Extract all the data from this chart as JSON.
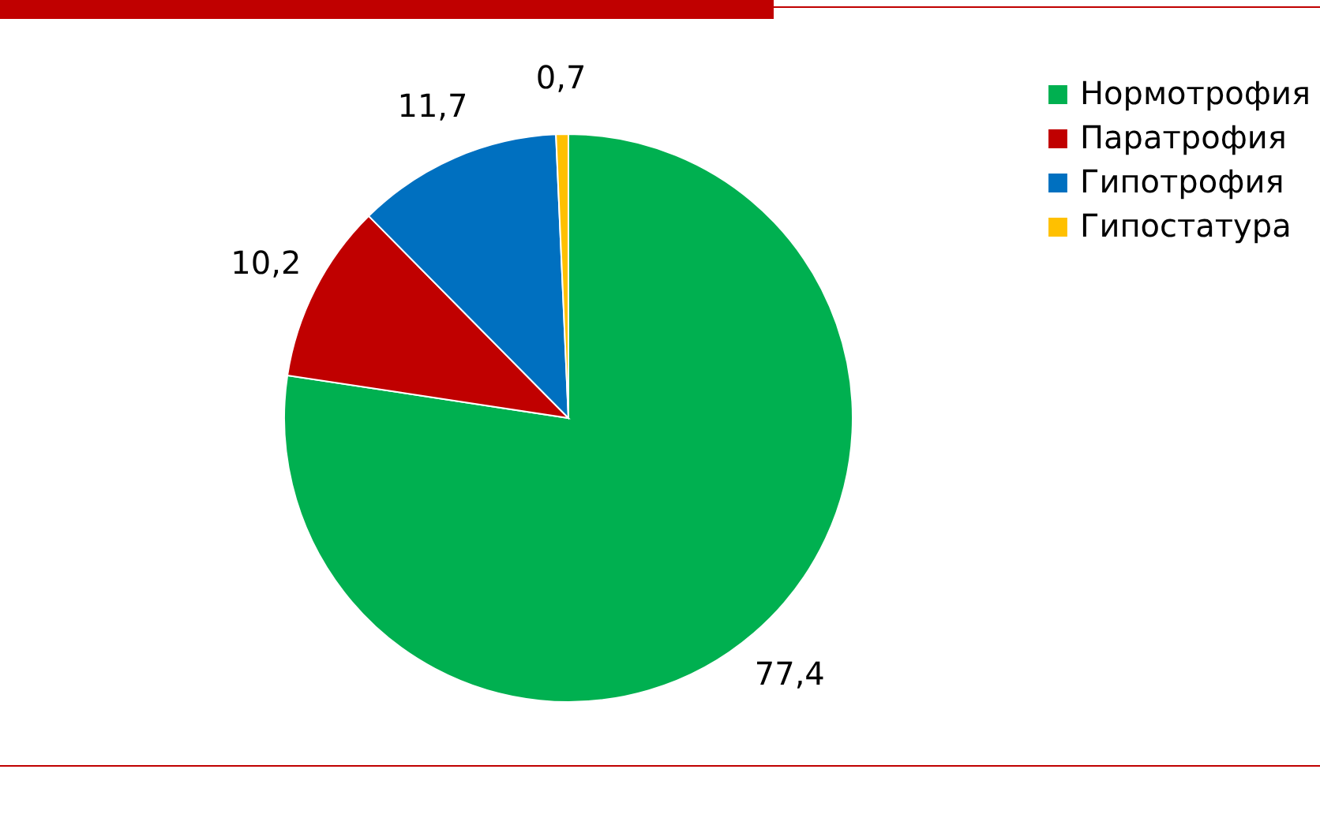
{
  "chart_data": {
    "type": "pie",
    "categories": [
      "Нормотрофия",
      "Паратрофия",
      "Гипотрофия",
      "Гипостатура"
    ],
    "values": [
      77.4,
      10.2,
      11.7,
      0.7
    ],
    "colors": [
      "#00b050",
      "#c00000",
      "#0070c0",
      "#ffc000"
    ],
    "value_labels": [
      "77,4",
      "10,2",
      "11,7",
      "0,7"
    ],
    "legend": "right"
  }
}
